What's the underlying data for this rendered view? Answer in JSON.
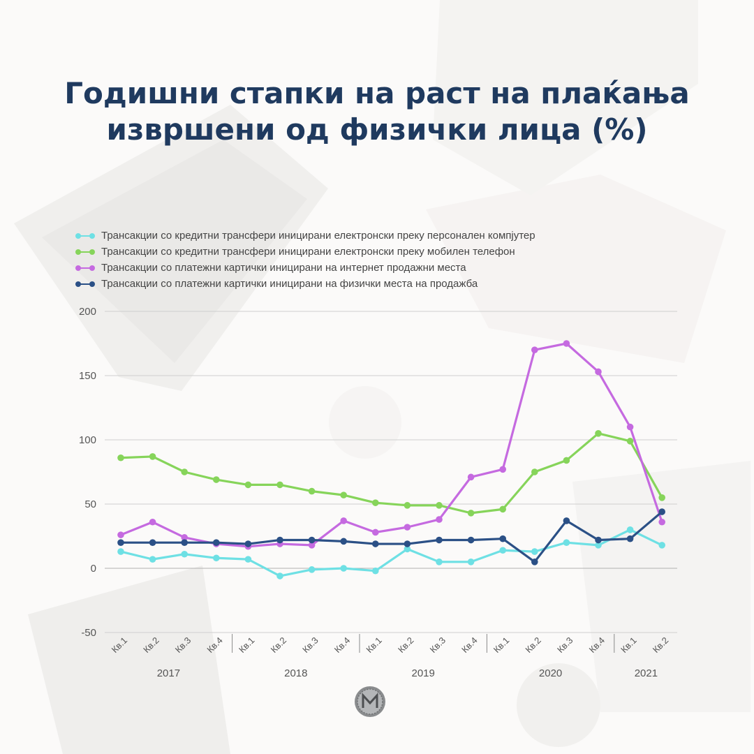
{
  "title": {
    "line1": "Годишни стапки на раст на плаќања",
    "line2": "извршени од физички лица (%)"
  },
  "chart_data": {
    "type": "line",
    "title": "Годишни стапки на раст на плаќања извршени од физички лица (%)",
    "x": [
      "Кв.1",
      "Кв.2",
      "Кв.3",
      "Кв.4",
      "Кв.1",
      "Кв.2",
      "Кв.3",
      "Кв.4",
      "Кв.1",
      "Кв.2",
      "Кв.3",
      "Кв.4",
      "Кв.1",
      "Кв.2",
      "Кв.3",
      "Кв.4",
      "Кв.1",
      "Кв.2"
    ],
    "year_groups": [
      {
        "label": "2017",
        "count": 4
      },
      {
        "label": "2018",
        "count": 4
      },
      {
        "label": "2019",
        "count": 4
      },
      {
        "label": "2020",
        "count": 4
      },
      {
        "label": "2021",
        "count": 2
      }
    ],
    "ylim": [
      -50,
      200
    ],
    "yticks": [
      -50,
      0,
      50,
      100,
      150,
      200
    ],
    "grid": true,
    "legend_position": "top-left",
    "series": [
      {
        "name": "Трансакции со кредитни трансфери иницирани електронски преку персонален компјутер",
        "color": "#6ee0e4",
        "values": [
          13,
          7,
          11,
          8,
          7,
          -6,
          -1,
          0,
          -2,
          15,
          5,
          5,
          14,
          13,
          20,
          18,
          30,
          18
        ]
      },
      {
        "name": "Трансакции со кредитни трансфери иницирани електронски преку мобилен телефон",
        "color": "#86d45a",
        "values": [
          86,
          87,
          75,
          69,
          65,
          65,
          60,
          57,
          51,
          49,
          49,
          43,
          46,
          75,
          84,
          105,
          99,
          55
        ]
      },
      {
        "name": "Трансакции со платежни картички иницирани на интернет продажни места",
        "color": "#c56ae0",
        "values": [
          26,
          36,
          24,
          19,
          17,
          19,
          18,
          37,
          28,
          32,
          38,
          71,
          77,
          170,
          175,
          153,
          110,
          36
        ]
      },
      {
        "name": "Трансакции со платежни картички иницирани на физички места на продажба",
        "color": "#2b5086",
        "values": [
          20,
          20,
          20,
          20,
          19,
          22,
          22,
          21,
          19,
          19,
          22,
          22,
          23,
          5,
          37,
          22,
          23,
          44
        ]
      }
    ]
  }
}
